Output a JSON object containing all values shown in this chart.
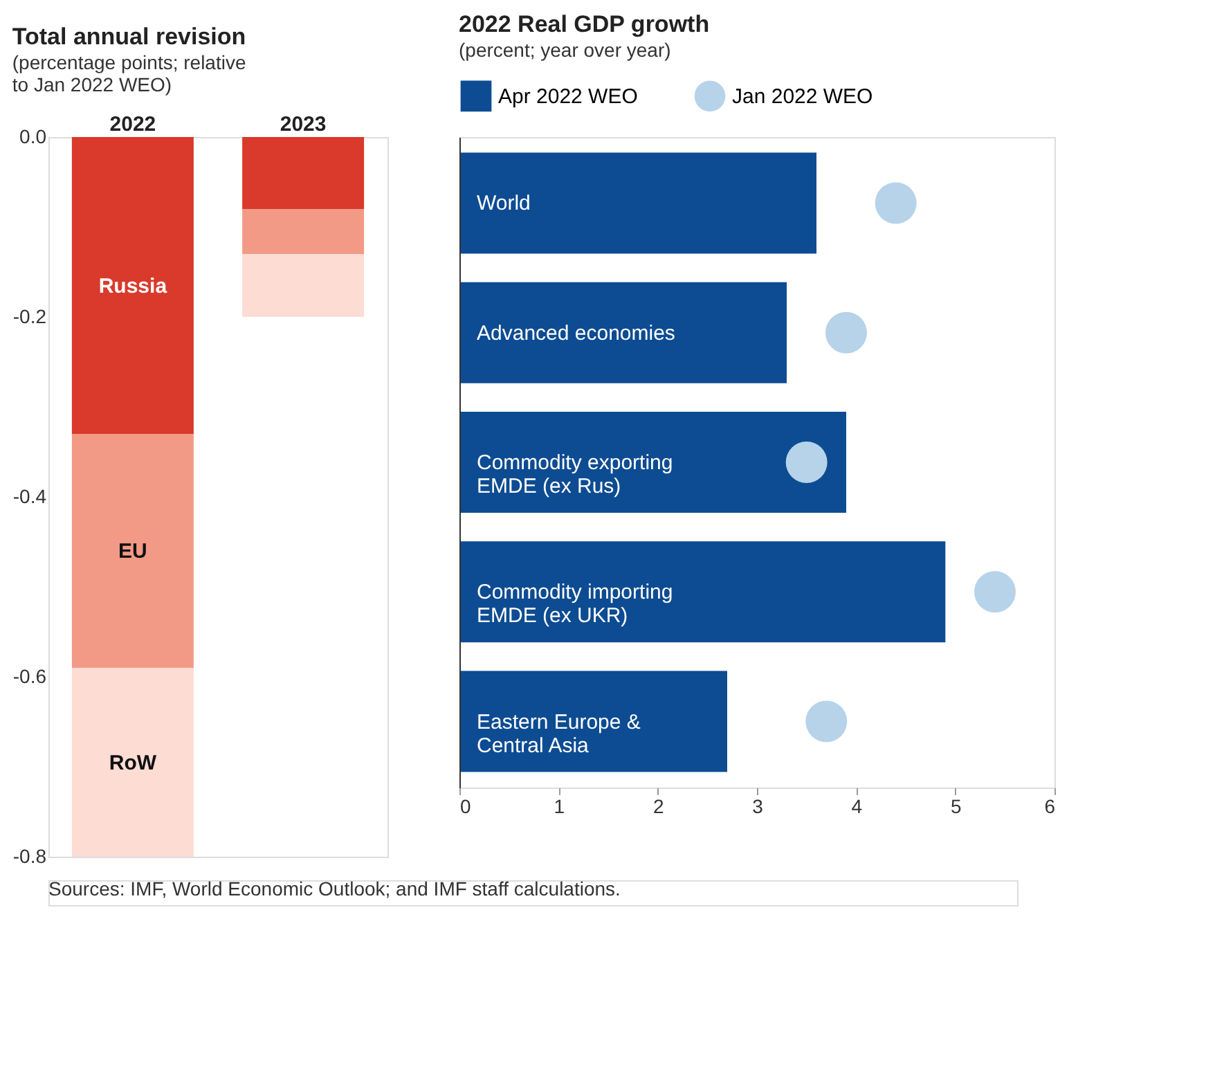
{
  "chart_data": [
    {
      "type": "bar",
      "stacked": true,
      "title": "Total annual revision",
      "subtitle": "(percentage points; relative to Jan 2022 WEO)",
      "categories": [
        "2022",
        "2023"
      ],
      "series": [
        {
          "name": "Russia",
          "color": "#d93a2b",
          "values": [
            -0.33,
            -0.08
          ]
        },
        {
          "name": "EU",
          "color": "#f29a85",
          "values": [
            -0.26,
            -0.05
          ]
        },
        {
          "name": "RoW",
          "color": "#fcdcd3",
          "values": [
            -0.21,
            -0.07
          ]
        }
      ],
      "ylim": [
        -0.8,
        0
      ],
      "yticks": [
        {
          "value": 0,
          "label": "0.0"
        },
        -0.2,
        -0.4,
        -0.6,
        -0.8
      ],
      "grid": false,
      "annotations": [
        "Sources: IMF, World Economic Outlook; and IMF staff calculations."
      ]
    },
    {
      "type": "bar",
      "orientation": "horizontal",
      "title": "2022 Real GDP growth",
      "subtitle": "(percent; year over year)",
      "categories": [
        "World",
        "Advanced economies",
        "Commodity exporting EMDE (ex Rus)",
        "Commodity importing EMDE (ex UKR)",
        "Eastern Europe & Central Asia"
      ],
      "series": [
        {
          "name": "Apr 2022 WEO",
          "type": "bar",
          "color": "#0d4c92",
          "values": [
            3.6,
            3.3,
            3.9,
            4.9,
            2.7
          ]
        },
        {
          "name": "Jan 2022 WEO",
          "type": "scatter",
          "marker": "circle",
          "color": "#b7d3ea",
          "values": [
            4.4,
            3.9,
            3.5,
            5.4,
            3.7
          ]
        }
      ],
      "xlim": [
        0,
        6
      ],
      "xticks": [
        0,
        1,
        2,
        3,
        4,
        5,
        6
      ],
      "grid": false,
      "legend": "top"
    }
  ]
}
